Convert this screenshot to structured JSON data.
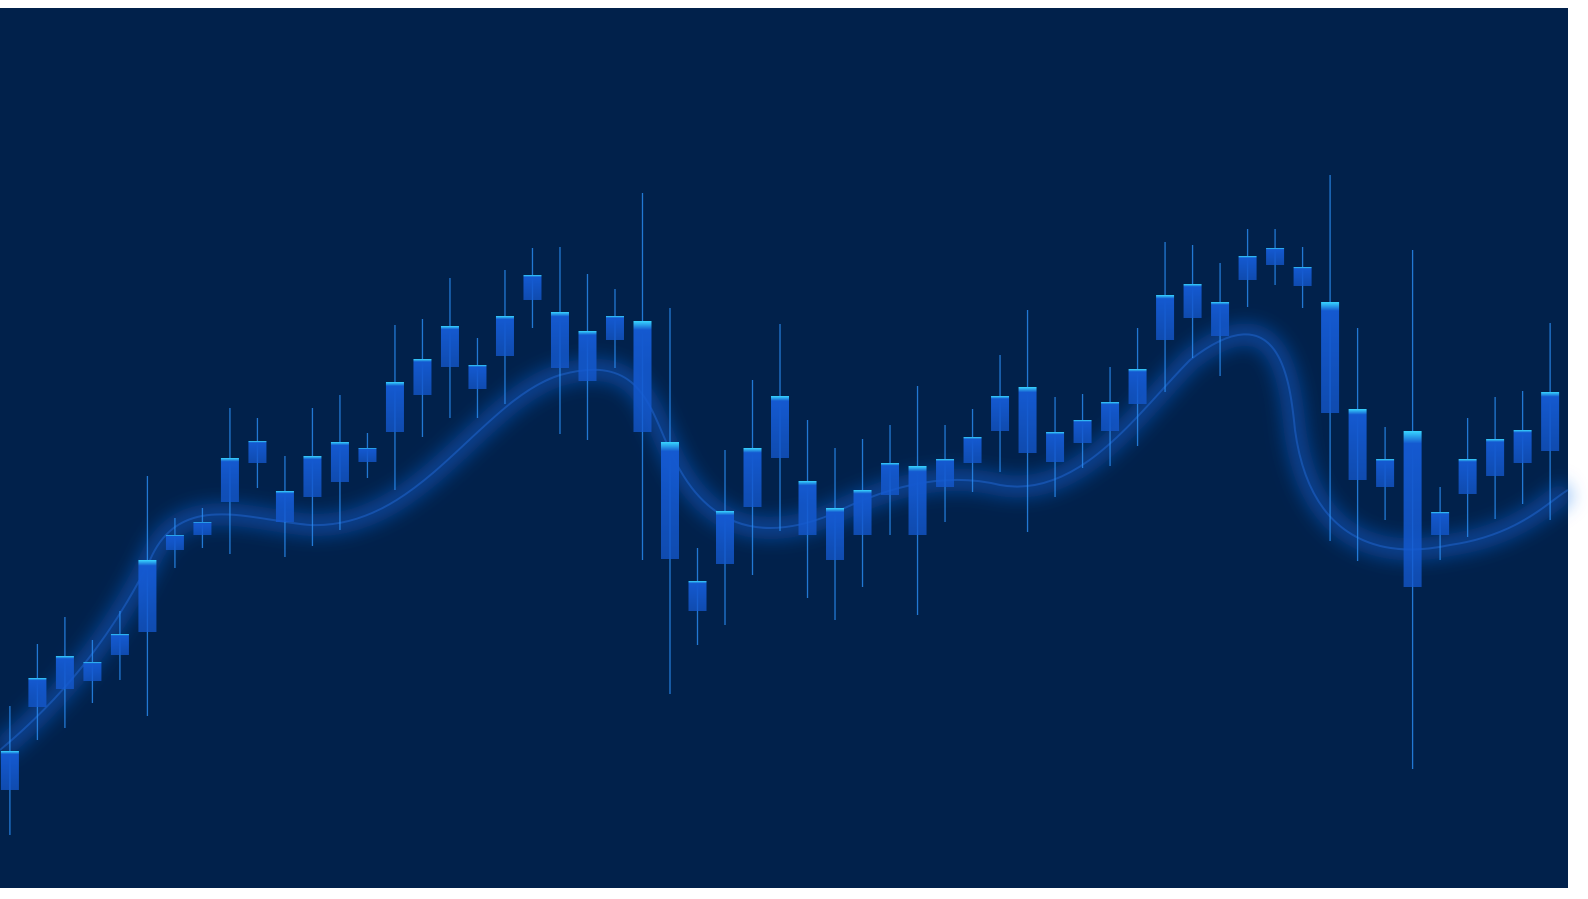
{
  "chart_data": {
    "type": "candlestick",
    "x": [
      0,
      1,
      2,
      3,
      4,
      5,
      6,
      7,
      8,
      9,
      10,
      11,
      12,
      13,
      14,
      15,
      16,
      17,
      18,
      19,
      20,
      21,
      22,
      23,
      24,
      25,
      26,
      27,
      28,
      29,
      30,
      31,
      32,
      33,
      34,
      35,
      36,
      37,
      38,
      39,
      40,
      41,
      42,
      43,
      44,
      45,
      46,
      47,
      48,
      49,
      50,
      51,
      52,
      53,
      54,
      55,
      56
    ],
    "open": [
      98,
      181,
      199,
      207,
      233,
      256,
      338,
      353,
      386,
      425,
      366,
      391,
      406,
      426,
      456,
      493,
      521,
      499,
      532,
      588,
      520,
      507,
      548,
      456,
      329,
      277,
      324,
      381,
      430,
      353,
      328,
      353,
      393,
      353,
      401,
      425,
      457,
      435,
      426,
      445,
      457,
      484,
      548,
      570,
      552,
      608,
      623,
      602,
      475,
      408,
      401,
      301,
      353,
      394,
      412,
      425,
      437
    ],
    "high": [
      182,
      244,
      271,
      248,
      277,
      412,
      370,
      380,
      480,
      470,
      432,
      480,
      493,
      455,
      563,
      569,
      610,
      550,
      618,
      640,
      641,
      614,
      599,
      695,
      580,
      340,
      438,
      508,
      564,
      468,
      440,
      449,
      463,
      502,
      463,
      479,
      533,
      578,
      491,
      494,
      521,
      560,
      646,
      643,
      625,
      659,
      659,
      641,
      713,
      560,
      461,
      638,
      401,
      470,
      491,
      497,
      565
    ],
    "low": [
      53,
      148,
      160,
      185,
      208,
      172,
      320,
      340,
      334,
      400,
      331,
      342,
      358,
      410,
      398,
      451,
      470,
      470,
      484,
      560,
      454,
      448,
      520,
      328,
      194,
      243,
      263,
      313,
      357,
      290,
      268,
      301,
      353,
      273,
      366,
      396,
      416,
      356,
      391,
      420,
      422,
      442,
      496,
      530,
      512,
      581,
      603,
      580,
      347,
      327,
      368,
      119,
      328,
      351,
      369,
      384,
      368
    ],
    "close": [
      137,
      210,
      232,
      226,
      254,
      328,
      353,
      366,
      430,
      447,
      397,
      432,
      446,
      440,
      506,
      529,
      562,
      523,
      572,
      613,
      576,
      557,
      572,
      567,
      446,
      307,
      377,
      440,
      492,
      407,
      380,
      398,
      425,
      422,
      429,
      451,
      492,
      501,
      456,
      468,
      486,
      519,
      593,
      604,
      586,
      632,
      640,
      621,
      586,
      479,
      429,
      457,
      376,
      429,
      449,
      458,
      496
    ],
    "xlim": [
      -0.36,
      56.65
    ],
    "ylim": [
      0,
      880
    ],
    "color": "#1459d0",
    "highlight": "#38d6ff",
    "wick_color": "#2b8ef5",
    "background": "#01214b"
  }
}
